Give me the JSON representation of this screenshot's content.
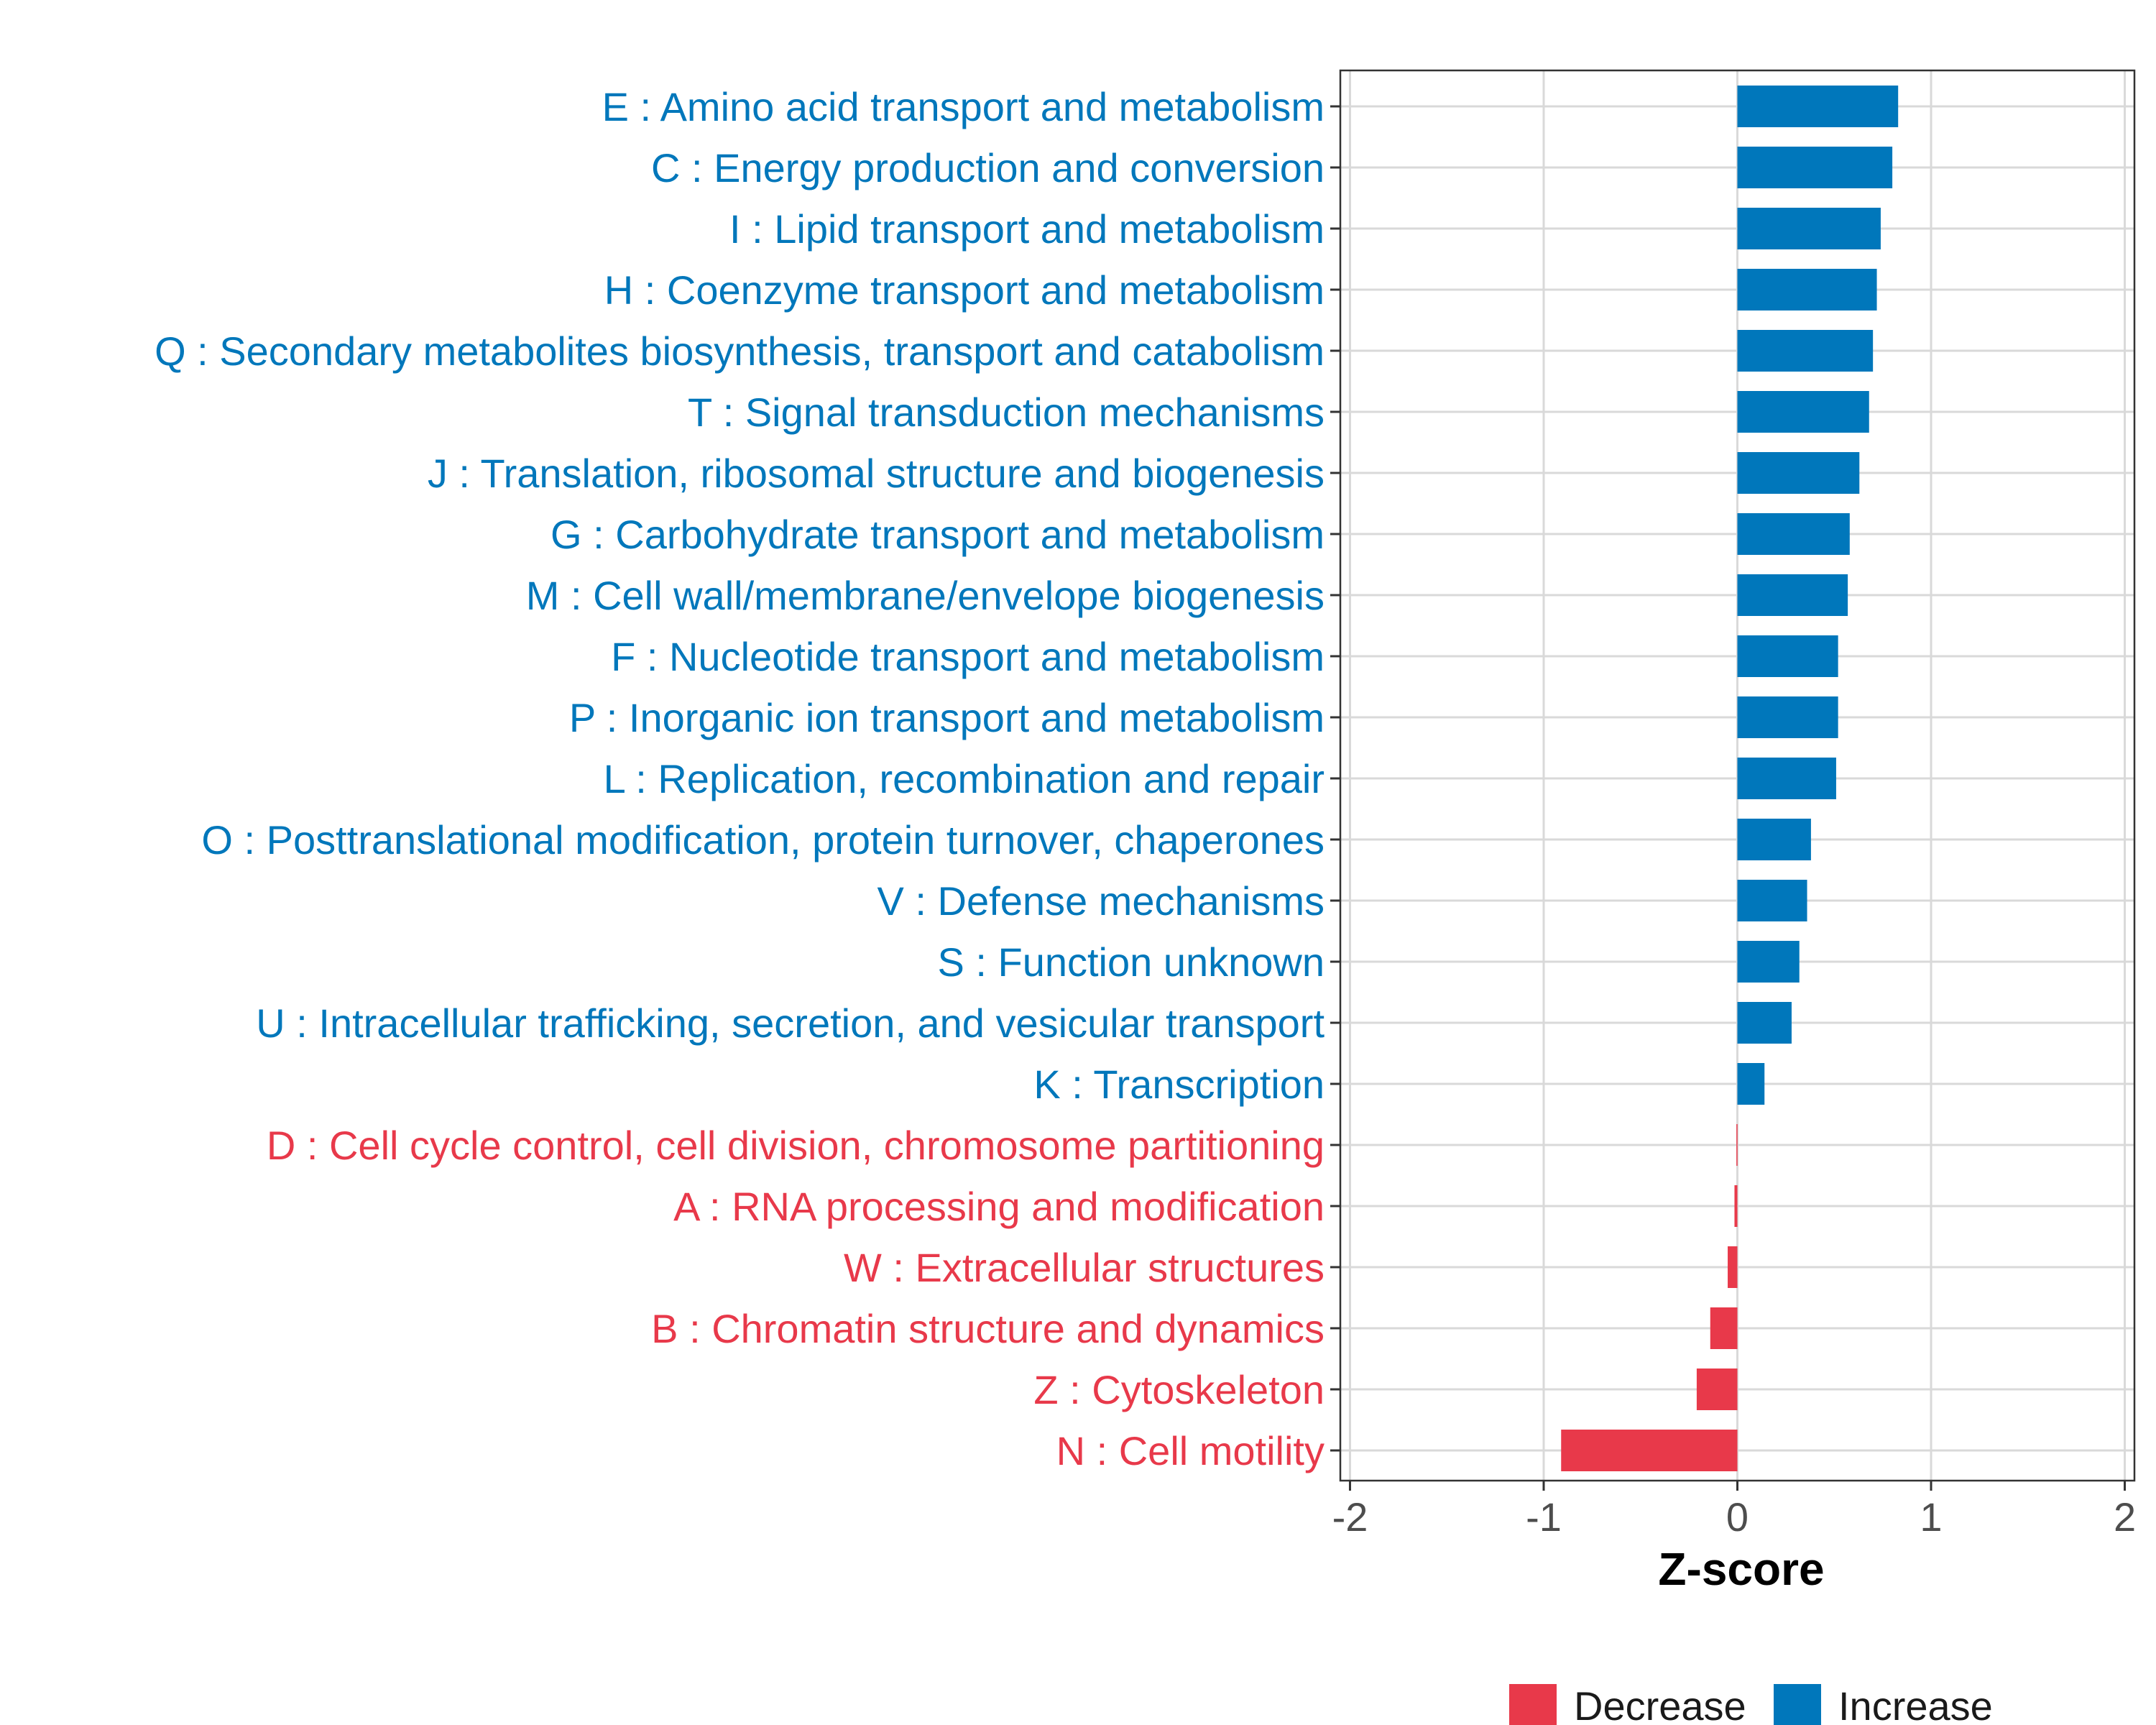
{
  "colors": {
    "increase": "#0077BB",
    "decrease": "#E8394A",
    "grid": "#D9D9D9",
    "axis": "#333333",
    "tick_text": "#4D4D4D"
  },
  "chart_data": {
    "type": "bar",
    "orientation": "horizontal",
    "title": "",
    "xlabel": "Z-score",
    "ylabel": "",
    "xlim": [
      -2.05,
      2.05
    ],
    "xticks": [
      -2,
      -1,
      0,
      1,
      2
    ],
    "xtick_labels": [
      "-2",
      "-1",
      "0",
      "1",
      "2"
    ],
    "grid": true,
    "legend": {
      "position": "bottom",
      "entries": [
        {
          "label": "Decrease",
          "color": "#E8394A"
        },
        {
          "label": "Increase",
          "color": "#0077BB"
        }
      ]
    },
    "categories": [
      "E : Amino acid transport and metabolism",
      "C : Energy production and conversion",
      "I : Lipid transport and metabolism",
      "H : Coenzyme transport and metabolism",
      "Q : Secondary metabolites biosynthesis, transport and catabolism",
      "T : Signal transduction mechanisms",
      "J : Translation, ribosomal structure and biogenesis",
      "G : Carbohydrate transport and metabolism",
      "M : Cell wall/membrane/envelope biogenesis",
      "F : Nucleotide transport and metabolism",
      "P : Inorganic ion transport and metabolism",
      "L : Replication, recombination and repair",
      "O : Posttranslational modification, protein turnover, chaperones",
      "V : Defense mechanisms",
      "S : Function unknown",
      "U : Intracellular trafficking, secretion, and vesicular transport",
      "K : Transcription",
      "D : Cell cycle control, cell division, chromosome partitioning",
      "A : RNA processing and modification",
      "W : Extracellular structures",
      "B : Chromatin structure and dynamics",
      "Z : Cytoskeleton",
      "N : Cell motility"
    ],
    "values": [
      0.83,
      0.8,
      0.74,
      0.72,
      0.7,
      0.68,
      0.63,
      0.58,
      0.57,
      0.52,
      0.52,
      0.51,
      0.38,
      0.36,
      0.32,
      0.28,
      0.14,
      -0.005,
      -0.015,
      -0.05,
      -0.14,
      -0.21,
      -0.91
    ],
    "direction": [
      "Increase",
      "Increase",
      "Increase",
      "Increase",
      "Increase",
      "Increase",
      "Increase",
      "Increase",
      "Increase",
      "Increase",
      "Increase",
      "Increase",
      "Increase",
      "Increase",
      "Increase",
      "Increase",
      "Increase",
      "Decrease",
      "Decrease",
      "Decrease",
      "Decrease",
      "Decrease",
      "Decrease"
    ]
  }
}
